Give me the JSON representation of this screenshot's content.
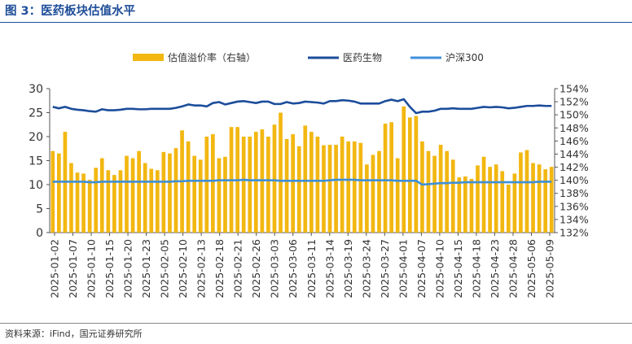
{
  "figure": {
    "title": "图 3：医药板块估值水平",
    "source": "资料来源：iFind，国元证券研究所"
  },
  "colors": {
    "bar": "#f2b711",
    "pharma_line": "#1c4d9b",
    "hs300_line": "#3f8fd8",
    "title": "#1f4e99"
  },
  "chart_data": {
    "type": "bar+line",
    "legend_placement": "top",
    "series": [
      {
        "name": "估值溢价率（右轴）",
        "kind": "bar",
        "axis": "left",
        "values": [
          17,
          16.5,
          21,
          14.5,
          12.5,
          12.3,
          11,
          13.5,
          15.5,
          13,
          12,
          13,
          16,
          15.5,
          17,
          14.5,
          13.3,
          13,
          16.8,
          16.5,
          17.6,
          21.3,
          19,
          16,
          15.2,
          20,
          20.5,
          15.5,
          15.8,
          22,
          22,
          20,
          20,
          21,
          21.5,
          20,
          22.5,
          25,
          19.5,
          20.5,
          18,
          22.3,
          21,
          20,
          18.2,
          18.3,
          18.3,
          20,
          19,
          19,
          18.7,
          14.2,
          16.2,
          17,
          22.7,
          23,
          15.5,
          26.3,
          24,
          24.3,
          19,
          17,
          16,
          18.3,
          17,
          15.2,
          11.5,
          11.7,
          11.2,
          14,
          15.8,
          13.7,
          14.2,
          12.8,
          10,
          12.3,
          16.7,
          17.2,
          14.5,
          14.2,
          13.2,
          13.7
        ]
      },
      {
        "name": "医药生物",
        "kind": "line",
        "axis": "left",
        "values": [
          26.2,
          25.9,
          26.2,
          25.8,
          25.6,
          25.5,
          25.3,
          25.2,
          25.7,
          25.5,
          25.5,
          25.6,
          25.8,
          25.8,
          25.7,
          25.7,
          25.8,
          25.8,
          25.8,
          25.8,
          26.0,
          26.3,
          26.7,
          26.5,
          26.5,
          26.3,
          27.0,
          27.2,
          26.7,
          27.0,
          27.3,
          27.4,
          27.2,
          27.0,
          27.3,
          27.3,
          26.8,
          26.8,
          27.2,
          26.9,
          27.0,
          27.3,
          27.2,
          27.1,
          26.9,
          27.4,
          27.4,
          27.6,
          27.5,
          27.3,
          26.9,
          26.9,
          26.9,
          26.9,
          27.4,
          27.7,
          27.4,
          27.8,
          26.2,
          24.9,
          25.2,
          25.2,
          25.4,
          25.8,
          25.8,
          25.9,
          25.8,
          25.8,
          25.8,
          26.0,
          26.2,
          26.1,
          26.2,
          26.1,
          25.9,
          26.0,
          26.2,
          26.4,
          26.4,
          26.5,
          26.4,
          26.4
        ]
      },
      {
        "name": "沪深300",
        "kind": "line",
        "axis": "left",
        "values": [
          10.6,
          10.6,
          10.6,
          10.6,
          10.6,
          10.6,
          10.5,
          10.5,
          10.6,
          10.6,
          10.6,
          10.6,
          10.6,
          10.6,
          10.6,
          10.6,
          10.6,
          10.6,
          10.6,
          10.6,
          10.7,
          10.7,
          10.8,
          10.8,
          10.8,
          10.8,
          10.8,
          10.9,
          10.9,
          10.9,
          10.9,
          11.0,
          10.9,
          10.9,
          10.9,
          10.9,
          10.9,
          10.8,
          10.8,
          10.8,
          10.8,
          10.8,
          10.8,
          10.8,
          10.8,
          10.9,
          11.0,
          11.0,
          11.0,
          11.0,
          10.9,
          10.9,
          10.9,
          10.9,
          10.9,
          10.9,
          10.8,
          10.8,
          10.8,
          10.8,
          10.0,
          10.1,
          10.2,
          10.3,
          10.3,
          10.4,
          10.4,
          10.5,
          10.5,
          10.5,
          10.5,
          10.5,
          10.5,
          10.5,
          10.5,
          10.5,
          10.5,
          10.5,
          10.5,
          10.6,
          10.6,
          10.6
        ]
      }
    ],
    "x_tick_labels": [
      "2025-01-02",
      "2025-01-07",
      "2025-01-10",
      "2025-01-15",
      "2025-01-20",
      "2025-01-23",
      "2025-02-05",
      "2025-02-10",
      "2025-02-13",
      "2025-02-18",
      "2025-02-21",
      "2025-02-26",
      "2025-03-03",
      "2025-03-06",
      "2025-03-11",
      "2025-03-14",
      "2025-03-19",
      "2025-03-24",
      "2025-03-27",
      "2025-04-01",
      "2025-04-07",
      "2025-04-10",
      "2025-04-15",
      "2025-04-18",
      "2025-04-23",
      "2025-04-28",
      "2025-05-06",
      "2025-05-09"
    ],
    "ylim_left": [
      0,
      30
    ],
    "yticks_left": [
      "0",
      "5",
      "10",
      "15",
      "20",
      "25",
      "30"
    ],
    "ylim_right": [
      1.32,
      1.54
    ],
    "yticks_right": [
      "132%",
      "134%",
      "136%",
      "138%",
      "140%",
      "142%",
      "144%",
      "146%",
      "148%",
      "150%",
      "152%",
      "154%"
    ],
    "grid": false
  }
}
